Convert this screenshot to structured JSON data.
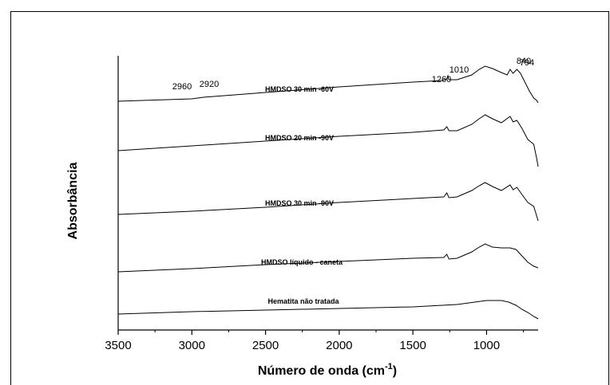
{
  "chart_data": {
    "type": "line",
    "title": "",
    "xlabel": "Número de onda (cm",
    "xlabel_sup": "-1",
    "xlabel_close": ")",
    "ylabel": "Absorbância",
    "xlim": [
      3500,
      650
    ],
    "x_reversed": true,
    "x_ticks": [
      3500,
      3000,
      2500,
      2000,
      1500,
      1000
    ],
    "tick_labels": [
      "3500",
      "3000",
      "2500",
      "2000",
      "1500",
      "1000"
    ],
    "grid": false,
    "series": [
      {
        "name": "HMDSO 30 min -60V",
        "points": [
          [
            3500,
            0
          ],
          [
            3000,
            3
          ],
          [
            2960,
            4
          ],
          [
            2920,
            5
          ],
          [
            2500,
            11
          ],
          [
            2000,
            18
          ],
          [
            1500,
            24
          ],
          [
            1300,
            26
          ],
          [
            1270,
            28
          ],
          [
            1262,
            32
          ],
          [
            1255,
            27
          ],
          [
            1200,
            27
          ],
          [
            1100,
            33
          ],
          [
            1050,
            40
          ],
          [
            1010,
            44
          ],
          [
            960,
            41
          ],
          [
            900,
            36
          ],
          [
            860,
            33
          ],
          [
            840,
            40
          ],
          [
            820,
            35
          ],
          [
            794,
            40
          ],
          [
            770,
            35
          ],
          [
            740,
            24
          ],
          [
            710,
            13
          ],
          [
            680,
            4
          ],
          [
            660,
            1
          ],
          [
            650,
            -2
          ]
        ]
      },
      {
        "name": "HMDSO 20 min -90V",
        "points": [
          [
            3500,
            0
          ],
          [
            3000,
            6
          ],
          [
            2500,
            12
          ],
          [
            2000,
            18
          ],
          [
            1500,
            23
          ],
          [
            1290,
            26
          ],
          [
            1270,
            30
          ],
          [
            1255,
            25
          ],
          [
            1200,
            25
          ],
          [
            1100,
            33
          ],
          [
            1050,
            40
          ],
          [
            1010,
            45
          ],
          [
            960,
            40
          ],
          [
            900,
            35
          ],
          [
            840,
            43
          ],
          [
            820,
            36
          ],
          [
            794,
            38
          ],
          [
            760,
            28
          ],
          [
            720,
            14
          ],
          [
            680,
            8
          ],
          [
            660,
            -10
          ],
          [
            650,
            -20
          ]
        ]
      },
      {
        "name": "HMDSO 30 min -90V",
        "points": [
          [
            3500,
            0
          ],
          [
            3000,
            4
          ],
          [
            2500,
            9
          ],
          [
            2000,
            15
          ],
          [
            1500,
            20
          ],
          [
            1290,
            22
          ],
          [
            1270,
            27
          ],
          [
            1255,
            21
          ],
          [
            1200,
            22
          ],
          [
            1100,
            30
          ],
          [
            1050,
            36
          ],
          [
            1010,
            40
          ],
          [
            960,
            35
          ],
          [
            900,
            30
          ],
          [
            840,
            37
          ],
          [
            820,
            31
          ],
          [
            794,
            34
          ],
          [
            760,
            25
          ],
          [
            720,
            15
          ],
          [
            680,
            10
          ],
          [
            660,
            -2
          ],
          [
            650,
            -8
          ]
        ]
      },
      {
        "name": "HMDSO líquido - caneta",
        "points": [
          [
            3500,
            0
          ],
          [
            3000,
            4
          ],
          [
            2500,
            9
          ],
          [
            2000,
            13
          ],
          [
            1500,
            17
          ],
          [
            1290,
            18
          ],
          [
            1270,
            22
          ],
          [
            1255,
            16
          ],
          [
            1200,
            17
          ],
          [
            1100,
            25
          ],
          [
            1050,
            31
          ],
          [
            1010,
            35
          ],
          [
            960,
            31
          ],
          [
            900,
            30
          ],
          [
            840,
            30
          ],
          [
            800,
            28
          ],
          [
            760,
            20
          ],
          [
            720,
            12
          ],
          [
            680,
            7
          ],
          [
            650,
            5
          ]
        ]
      },
      {
        "name": "Hematita não tratada",
        "points": [
          [
            3500,
            0
          ],
          [
            3000,
            3
          ],
          [
            2500,
            5
          ],
          [
            2000,
            7
          ],
          [
            1500,
            9
          ],
          [
            1200,
            12
          ],
          [
            1000,
            17
          ],
          [
            900,
            17
          ],
          [
            850,
            15
          ],
          [
            800,
            11
          ],
          [
            760,
            6
          ],
          [
            720,
            2
          ],
          [
            680,
            -3
          ],
          [
            650,
            -6
          ]
        ]
      }
    ],
    "annotations": [
      "2960",
      "2920",
      "1260",
      "1010",
      "840",
      "794"
    ]
  }
}
